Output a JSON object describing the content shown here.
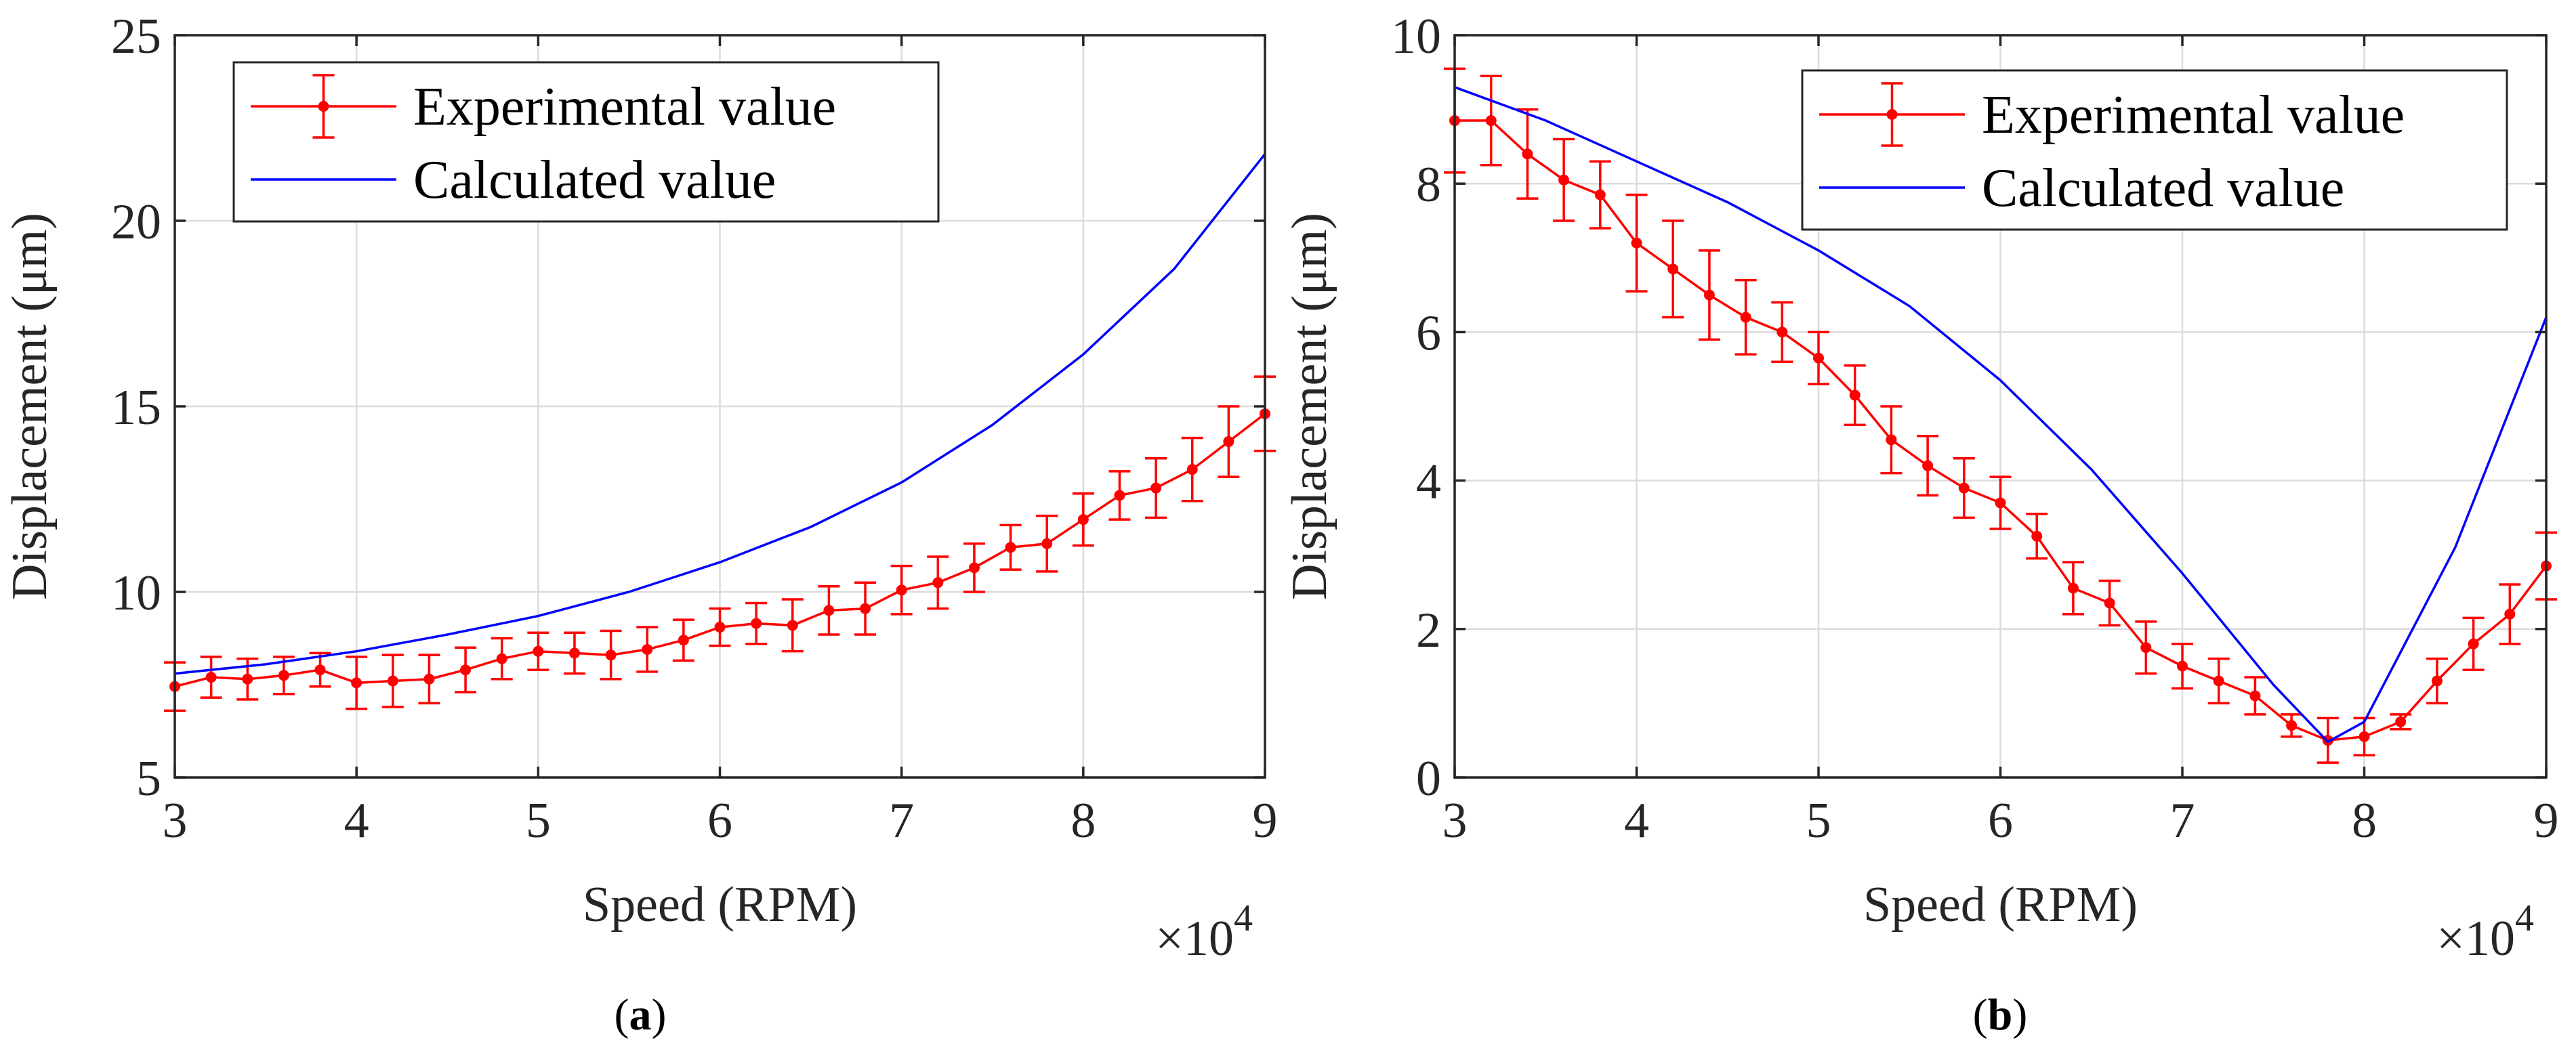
{
  "chart_data": [
    {
      "type": "line",
      "panel": "a",
      "caption_letter": "a",
      "xlabel": "Speed (RPM)",
      "ylabel": "Displacement (μm)",
      "x_exponent_base": "×10",
      "x_exponent_power": "4",
      "xlim": [
        3,
        9
      ],
      "ylim": [
        5,
        25
      ],
      "xticks": [
        3,
        4,
        5,
        6,
        7,
        8,
        9
      ],
      "yticks": [
        5,
        10,
        15,
        20,
        25
      ],
      "grid": true,
      "legend_position": "top-left",
      "series": [
        {
          "name": "Experimental value",
          "color": "#ff0000",
          "style": "line-errorbar-dot",
          "x": [
            3.0,
            3.2,
            3.4,
            3.6,
            3.8,
            4.0,
            4.2,
            4.4,
            4.6,
            4.8,
            5.0,
            5.2,
            5.4,
            5.6,
            5.8,
            6.0,
            6.2,
            6.4,
            6.6,
            6.8,
            7.0,
            7.2,
            7.4,
            7.6,
            7.8,
            8.0,
            8.2,
            8.4,
            8.6,
            8.8,
            9.0
          ],
          "y": [
            7.45,
            7.7,
            7.65,
            7.75,
            7.9,
            7.55,
            7.6,
            7.65,
            7.9,
            8.2,
            8.4,
            8.35,
            8.3,
            8.45,
            8.7,
            9.05,
            9.15,
            9.1,
            9.5,
            9.55,
            10.05,
            10.25,
            10.65,
            11.2,
            11.3,
            11.95,
            12.6,
            12.8,
            13.3,
            14.05,
            14.8
          ],
          "err": [
            0.65,
            0.55,
            0.55,
            0.5,
            0.45,
            0.7,
            0.7,
            0.65,
            0.6,
            0.55,
            0.5,
            0.55,
            0.65,
            0.6,
            0.55,
            0.5,
            0.55,
            0.7,
            0.65,
            0.7,
            0.65,
            0.7,
            0.65,
            0.6,
            0.75,
            0.7,
            0.65,
            0.8,
            0.85,
            0.95,
            1.0
          ]
        },
        {
          "name": "Calculated value",
          "color": "#0000ff",
          "style": "line",
          "x": [
            3.0,
            3.5,
            4.0,
            4.5,
            5.0,
            5.5,
            6.0,
            6.5,
            7.0,
            7.5,
            8.0,
            8.5,
            9.0
          ],
          "y": [
            7.8,
            8.05,
            8.4,
            8.85,
            9.35,
            10.0,
            10.8,
            11.75,
            12.95,
            14.5,
            16.4,
            18.7,
            21.8
          ]
        }
      ]
    },
    {
      "type": "line",
      "panel": "b",
      "caption_letter": "b",
      "xlabel": "Speed (RPM)",
      "ylabel": "Displacement (μm)",
      "x_exponent_base": "×10",
      "x_exponent_power": "4",
      "xlim": [
        3,
        9
      ],
      "ylim": [
        0,
        10
      ],
      "xticks": [
        3,
        4,
        5,
        6,
        7,
        8,
        9
      ],
      "yticks": [
        0,
        2,
        4,
        6,
        8,
        10
      ],
      "grid": true,
      "legend_position": "top-right",
      "series": [
        {
          "name": "Experimental value",
          "color": "#ff0000",
          "style": "line-errorbar-dot",
          "x": [
            3.0,
            3.2,
            3.4,
            3.6,
            3.8,
            4.0,
            4.2,
            4.4,
            4.6,
            4.8,
            5.0,
            5.2,
            5.4,
            5.6,
            5.8,
            6.0,
            6.2,
            6.4,
            6.6,
            6.8,
            7.0,
            7.2,
            7.4,
            7.6,
            7.8,
            8.0,
            8.2,
            8.4,
            8.6,
            8.8,
            9.0
          ],
          "y": [
            8.85,
            8.85,
            8.4,
            8.05,
            7.85,
            7.2,
            6.85,
            6.5,
            6.2,
            6.0,
            5.65,
            5.15,
            4.55,
            4.2,
            3.9,
            3.7,
            3.25,
            2.55,
            2.35,
            1.75,
            1.5,
            1.3,
            1.1,
            0.7,
            0.5,
            0.55,
            0.75,
            1.3,
            1.8,
            2.2,
            2.85
          ],
          "err": [
            0.7,
            0.6,
            0.6,
            0.55,
            0.45,
            0.65,
            0.65,
            0.6,
            0.5,
            0.4,
            0.35,
            0.4,
            0.45,
            0.4,
            0.4,
            0.35,
            0.3,
            0.35,
            0.3,
            0.35,
            0.3,
            0.3,
            0.25,
            0.15,
            0.3,
            0.25,
            0.1,
            0.3,
            0.35,
            0.4,
            0.45
          ]
        },
        {
          "name": "Calculated value",
          "color": "#0000ff",
          "style": "line",
          "x": [
            3.0,
            3.5,
            4.0,
            4.5,
            5.0,
            5.5,
            6.0,
            6.5,
            7.0,
            7.5,
            7.8,
            8.0,
            8.5,
            9.0
          ],
          "y": [
            9.3,
            8.85,
            8.3,
            7.75,
            7.1,
            6.35,
            5.35,
            4.15,
            2.75,
            1.25,
            0.48,
            0.75,
            3.1,
            6.2
          ]
        }
      ]
    }
  ]
}
